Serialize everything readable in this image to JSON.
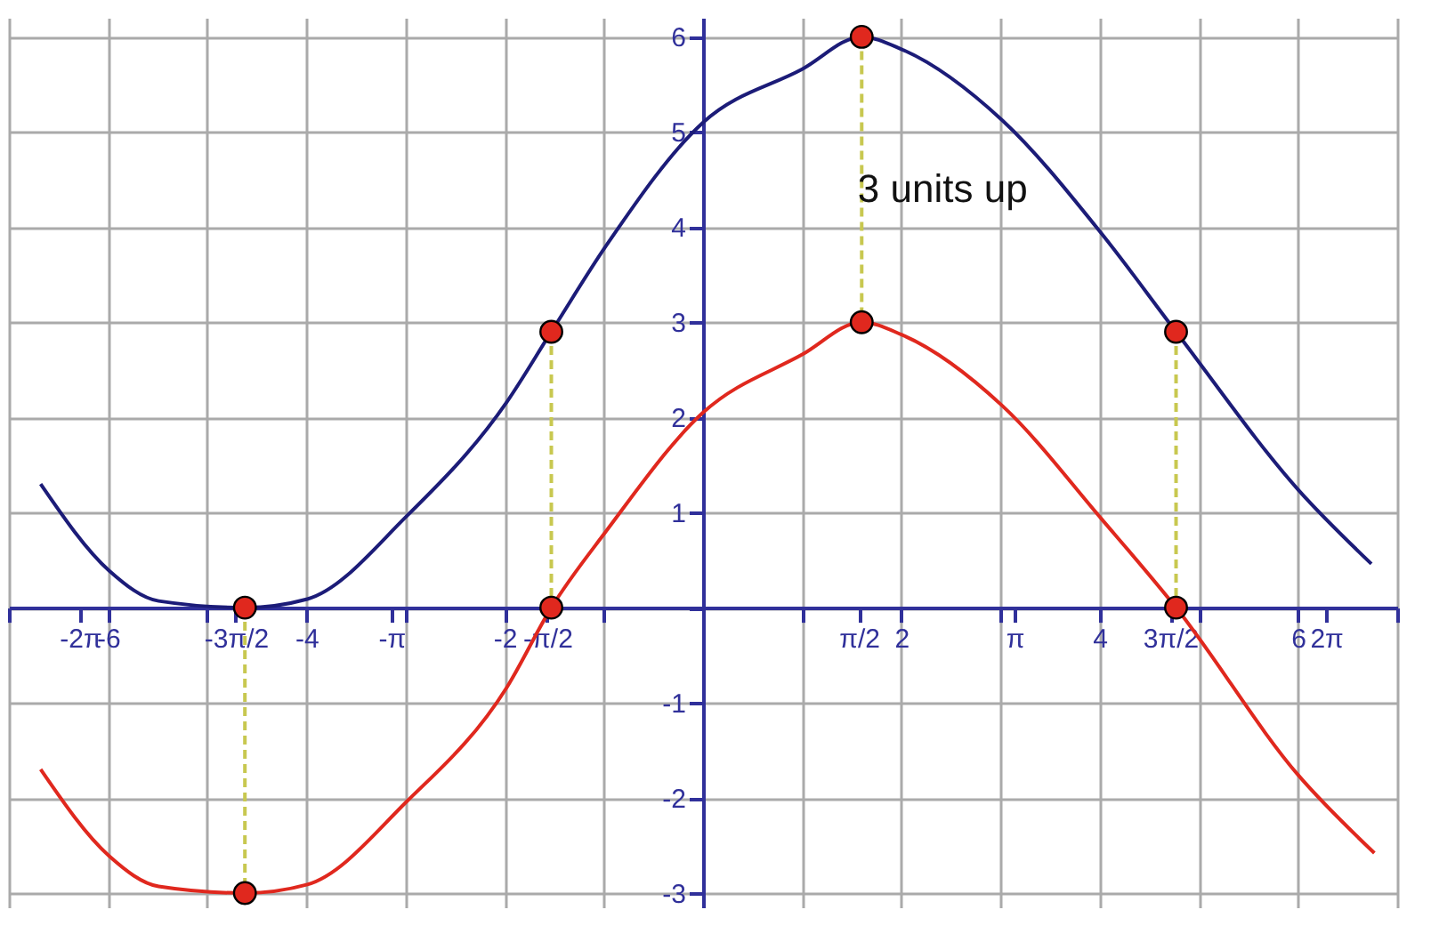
{
  "chart_data": {
    "type": "line",
    "xlim": [
      -7,
      7
    ],
    "ylim": [
      -3.15,
      6.2
    ],
    "xticks": [
      {
        "value": -7,
        "label": null
      },
      -6,
      {
        "value": -5,
        "label": null
      },
      -4,
      {
        "value": -3,
        "label": null
      },
      -2,
      {
        "value": -1,
        "label": null
      },
      {
        "value": 0,
        "label": null
      },
      {
        "value": 1,
        "label": null
      },
      2,
      {
        "value": 3,
        "label": null
      },
      4,
      {
        "value": 5,
        "label": null
      },
      6,
      {
        "value": 7,
        "label": null
      },
      {
        "value": -6.283,
        "label": "-2π"
      },
      {
        "value": -4.712,
        "label": "-3π/2"
      },
      {
        "value": -3.142,
        "label": "-π"
      },
      {
        "value": -1.571,
        "label": "-π/2"
      },
      {
        "value": 1.571,
        "label": "π/2"
      },
      {
        "value": 3.142,
        "label": "π"
      },
      {
        "value": 4.712,
        "label": "3π/2"
      },
      {
        "value": 6.283,
        "label": "2π"
      }
    ],
    "yticks": [
      -3,
      -2,
      -1,
      {
        "value": 0,
        "label": null
      },
      1,
      2,
      3,
      4,
      5,
      6
    ],
    "grid": true,
    "line_style": "solid",
    "series": [
      {
        "color": "#1c1c78",
        "x": [
          -6.68,
          -5.99,
          -5.49,
          -4.62,
          -3.99,
          -2.99,
          -1.98,
          -1.53,
          -0.98,
          0,
          1.0,
          1.6,
          2.0,
          3.02,
          4.02,
          4.77,
          6.01,
          6.74
        ],
        "values": [
          1.3,
          0.39,
          0.07,
          0,
          0.09,
          0.96,
          2.16,
          2.9,
          3.8,
          5.1,
          5.66,
          6.0,
          5.87,
          5.12,
          3.93,
          2.9,
          1.23,
          0.46
        ]
      },
      {
        "color": "#e0281e",
        "x": [
          -6.68,
          -5.99,
          -5.49,
          -4.62,
          -3.99,
          -2.99,
          -1.98,
          -1.53,
          -0.98,
          0,
          1.0,
          1.6,
          2.0,
          3.02,
          4.02,
          4.77,
          6.01,
          6.77
        ],
        "values": [
          -1.7,
          -2.61,
          -2.93,
          -3.0,
          -2.91,
          -2.04,
          -0.84,
          0,
          0.8,
          2.05,
          2.66,
          3.0,
          2.87,
          2.12,
          0.93,
          0,
          -1.77,
          -2.58
        ]
      },
      {
        "type": "line",
        "color": "#c8c850",
        "line_style": "dashed",
        "x": [
          -4.62,
          -4.62
        ],
        "values": [
          0,
          -3
        ]
      },
      {
        "type": "line",
        "color": "#c8c850",
        "line_style": "dashed",
        "x": [
          -1.53,
          -1.53
        ],
        "values": [
          2.9,
          0
        ]
      },
      {
        "type": "line",
        "color": "#c8c850",
        "line_style": "dashed",
        "x": [
          1.6,
          1.6
        ],
        "values": [
          6,
          3
        ]
      },
      {
        "type": "line",
        "color": "#c8c850",
        "line_style": "dashed",
        "x": [
          4.77,
          4.77
        ],
        "values": [
          2.9,
          0
        ]
      },
      {
        "type": "scatter",
        "color": "#e0281e",
        "marker": "circle",
        "x": [
          -4.62,
          -4.62,
          -1.53,
          -1.53,
          1.6,
          1.6,
          4.77,
          4.77
        ],
        "values": [
          0,
          -3,
          2.9,
          0,
          6,
          3,
          2.9,
          0
        ]
      }
    ],
    "annotations": [
      {
        "text": "3 units up",
        "x": 1.56,
        "y": 4.4
      }
    ]
  }
}
